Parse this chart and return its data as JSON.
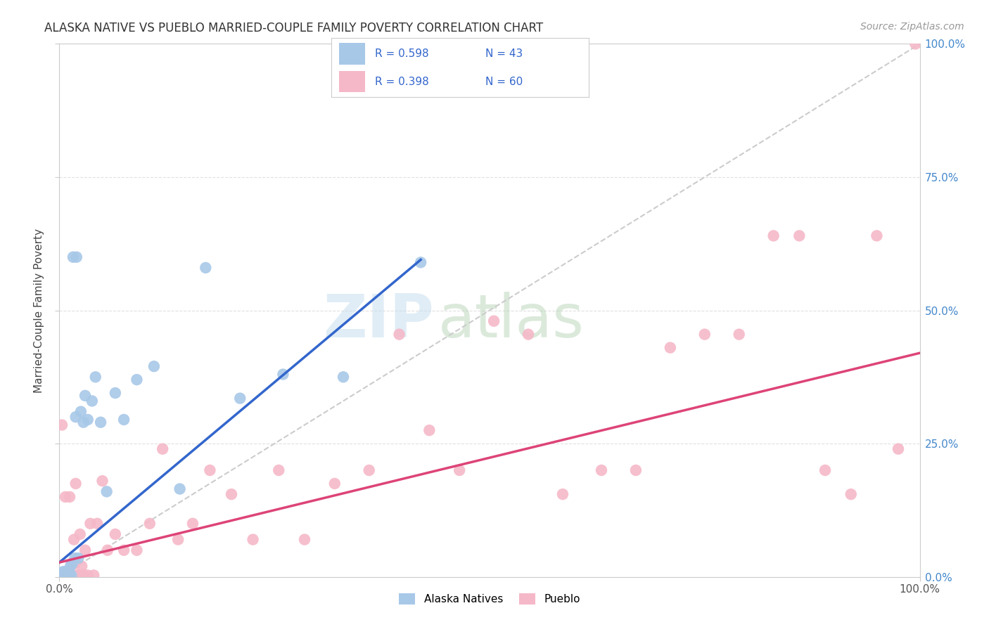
{
  "title": "ALASKA NATIVE VS PUEBLO MARRIED-COUPLE FAMILY POVERTY CORRELATION CHART",
  "source": "Source: ZipAtlas.com",
  "ylabel": "Married-Couple Family Poverty",
  "xlim": [
    0,
    1
  ],
  "ylim": [
    0,
    1
  ],
  "alaska_color": "#a8c8e8",
  "pueblo_color": "#f5b8c8",
  "alaska_line_color": "#3366cc",
  "pueblo_line_color": "#dd4477",
  "diagonal_color": "#cccccc",
  "alaska_R": 0.598,
  "alaska_N": 43,
  "pueblo_R": 0.398,
  "pueblo_N": 60,
  "alaska_x": [
    0.002,
    0.003,
    0.003,
    0.004,
    0.004,
    0.005,
    0.005,
    0.006,
    0.006,
    0.007,
    0.007,
    0.008,
    0.009,
    0.01,
    0.01,
    0.011,
    0.012,
    0.013,
    0.014,
    0.015,
    0.016,
    0.018,
    0.019,
    0.02,
    0.022,
    0.025,
    0.028,
    0.03,
    0.033,
    0.038,
    0.042,
    0.048,
    0.055,
    0.065,
    0.075,
    0.09,
    0.11,
    0.14,
    0.17,
    0.21,
    0.26,
    0.33,
    0.42
  ],
  "alaska_y": [
    0.003,
    0.005,
    0.008,
    0.003,
    0.006,
    0.003,
    0.01,
    0.003,
    0.007,
    0.004,
    0.009,
    0.003,
    0.003,
    0.003,
    0.012,
    0.003,
    0.003,
    0.02,
    0.003,
    0.025,
    0.6,
    0.035,
    0.3,
    0.6,
    0.035,
    0.31,
    0.29,
    0.34,
    0.295,
    0.33,
    0.375,
    0.29,
    0.16,
    0.345,
    0.295,
    0.37,
    0.395,
    0.165,
    0.58,
    0.335,
    0.38,
    0.375,
    0.59
  ],
  "pueblo_x": [
    0.003,
    0.005,
    0.006,
    0.007,
    0.008,
    0.009,
    0.01,
    0.011,
    0.012,
    0.013,
    0.014,
    0.015,
    0.016,
    0.017,
    0.018,
    0.019,
    0.02,
    0.022,
    0.024,
    0.026,
    0.028,
    0.03,
    0.033,
    0.036,
    0.04,
    0.044,
    0.05,
    0.056,
    0.065,
    0.075,
    0.09,
    0.105,
    0.12,
    0.138,
    0.155,
    0.175,
    0.2,
    0.225,
    0.255,
    0.285,
    0.32,
    0.36,
    0.395,
    0.43,
    0.465,
    0.505,
    0.545,
    0.585,
    0.63,
    0.67,
    0.71,
    0.75,
    0.79,
    0.83,
    0.86,
    0.89,
    0.92,
    0.95,
    0.975,
    0.995
  ],
  "pueblo_y": [
    0.285,
    0.003,
    0.003,
    0.15,
    0.003,
    0.003,
    0.003,
    0.003,
    0.15,
    0.003,
    0.025,
    0.003,
    0.003,
    0.07,
    0.025,
    0.175,
    0.003,
    0.003,
    0.08,
    0.02,
    0.003,
    0.05,
    0.003,
    0.1,
    0.003,
    0.1,
    0.18,
    0.05,
    0.08,
    0.05,
    0.05,
    0.1,
    0.24,
    0.07,
    0.1,
    0.2,
    0.155,
    0.07,
    0.2,
    0.07,
    0.175,
    0.2,
    0.455,
    0.275,
    0.2,
    0.48,
    0.455,
    0.155,
    0.2,
    0.2,
    0.43,
    0.455,
    0.455,
    0.64,
    0.64,
    0.2,
    0.155,
    0.64,
    0.24,
    1.0
  ],
  "alaska_line_x": [
    0.0,
    0.42
  ],
  "alaska_line_y": [
    0.027,
    0.595
  ],
  "pueblo_line_x": [
    0.0,
    1.0
  ],
  "pueblo_line_y": [
    0.027,
    0.42
  ],
  "watermark_zip": "ZIP",
  "watermark_atlas": "atlas",
  "background_color": "#ffffff",
  "grid_color": "#e0e0e0"
}
